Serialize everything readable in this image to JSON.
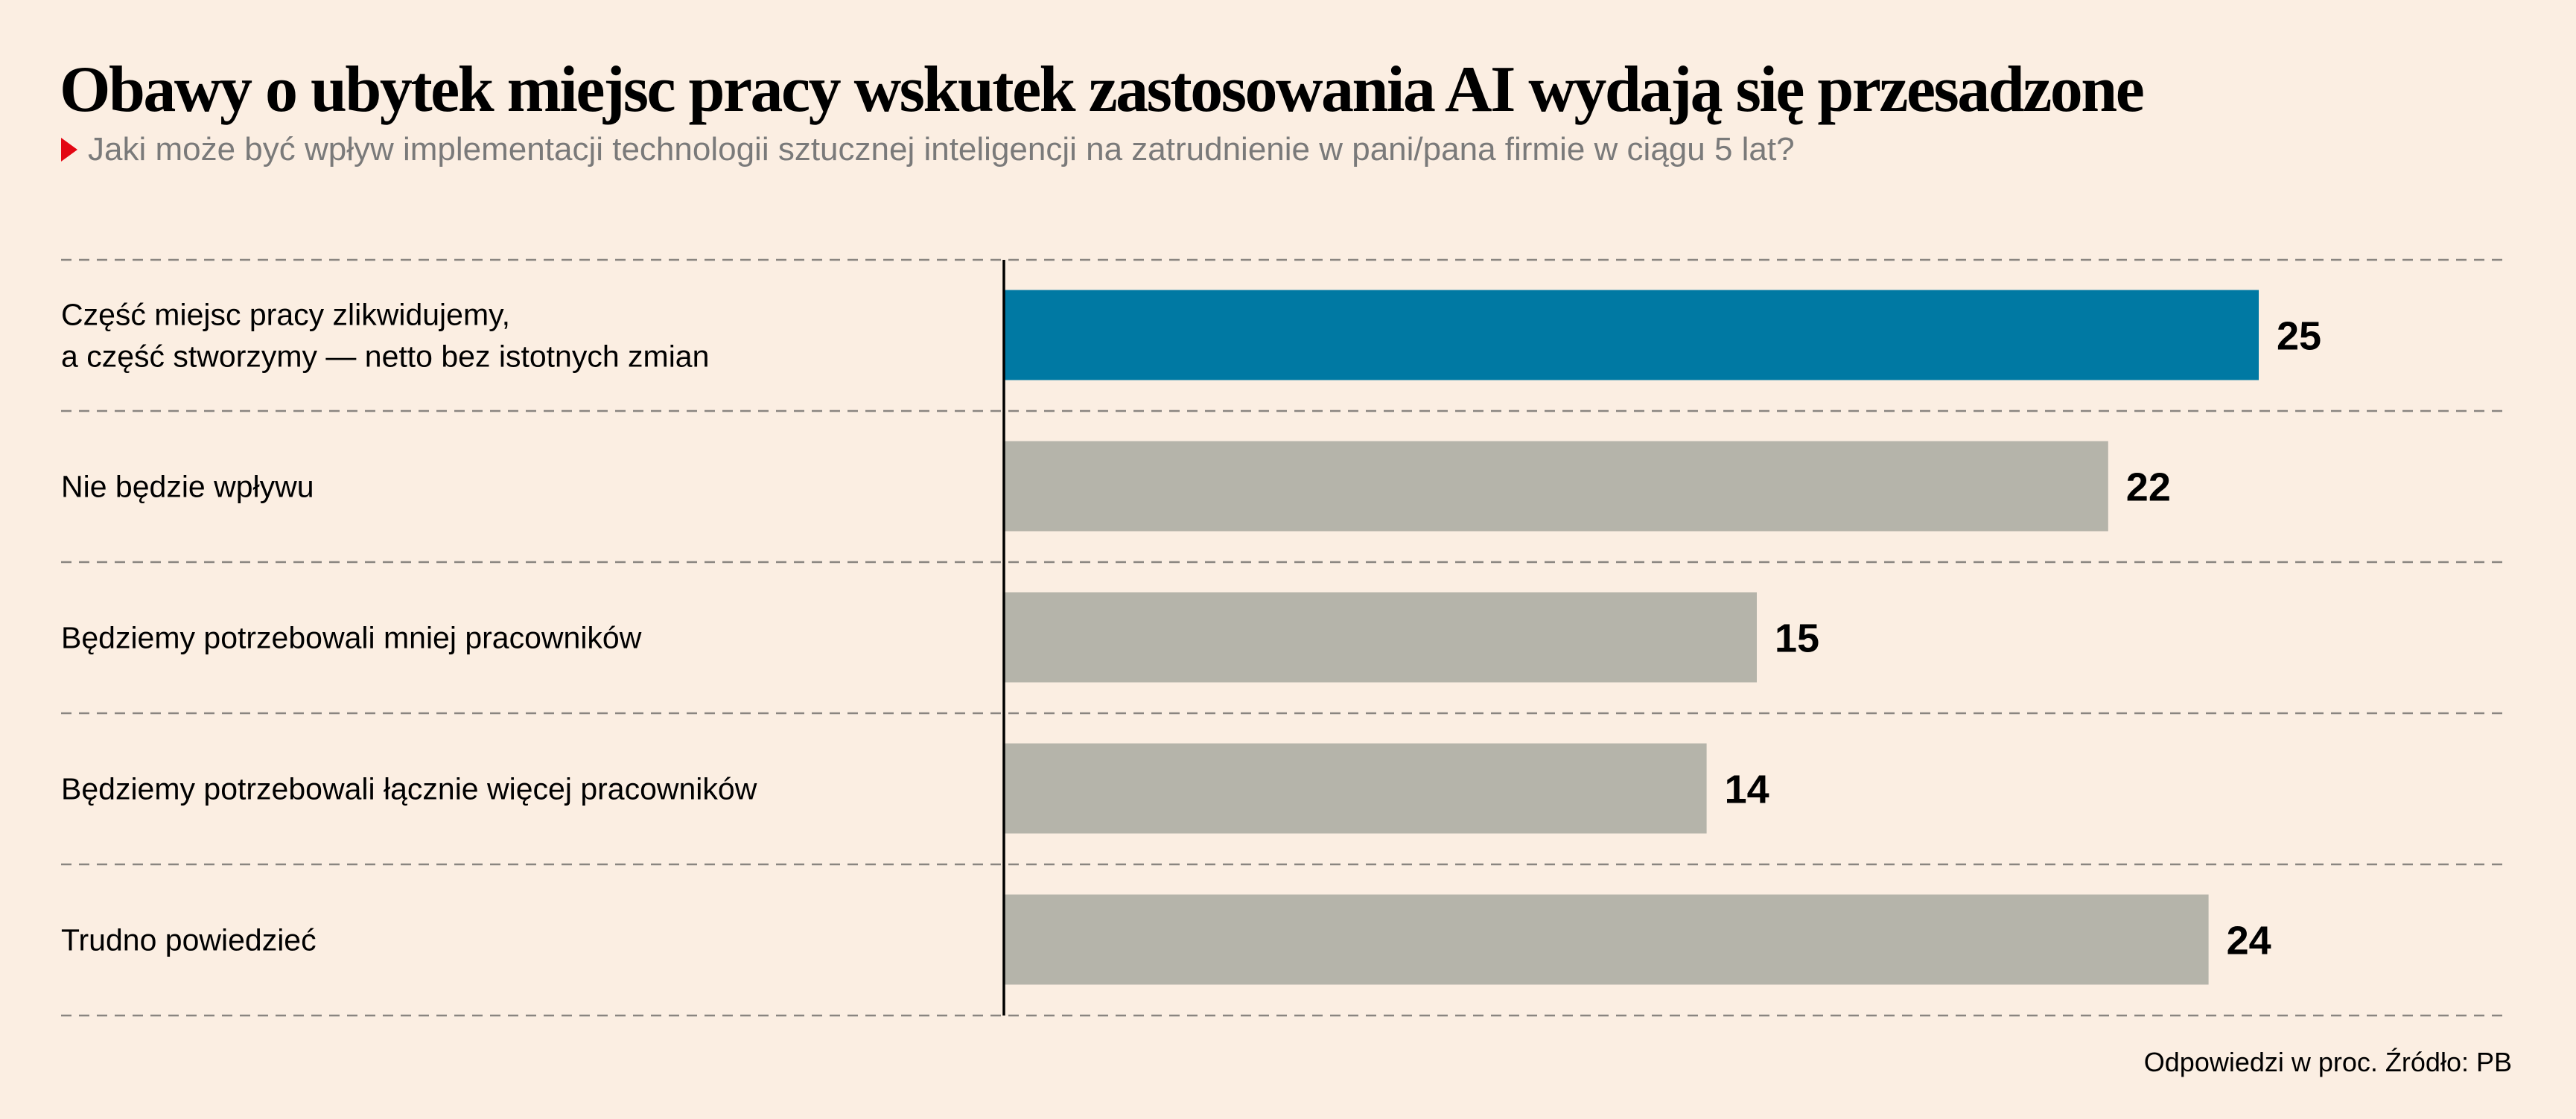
{
  "chart_data": {
    "type": "bar",
    "orientation": "horizontal",
    "title": "Obawy o ubytek miejsc pracy wskutek zastosowania AI wydają się przesadzone",
    "subtitle": "Jaki może być wpływ implementacji technologii sztucznej inteligencji na zatrudnienie w pani/pana firmie w ciągu 5 lat?",
    "categories": [
      [
        "Część miejsc pracy zlikwidujemy,",
        "a część stworzymy — netto bez istotnych zmian"
      ],
      [
        "Nie będzie wpływu"
      ],
      [
        "Będziemy potrzebowali mniej pracowników"
      ],
      [
        "Będziemy potrzebowali łącznie więcej pracowników"
      ],
      [
        "Trudno powiedzieć"
      ]
    ],
    "values": [
      25,
      22,
      15,
      14,
      24
    ],
    "colors": [
      "#0079a3",
      "#b5b4aa",
      "#b5b4aa",
      "#b5b4aa",
      "#b5b4aa"
    ],
    "xlim": [
      0,
      25
    ],
    "grid": false,
    "footer": "Odpowiedzi w proc. Źródło: PB"
  }
}
